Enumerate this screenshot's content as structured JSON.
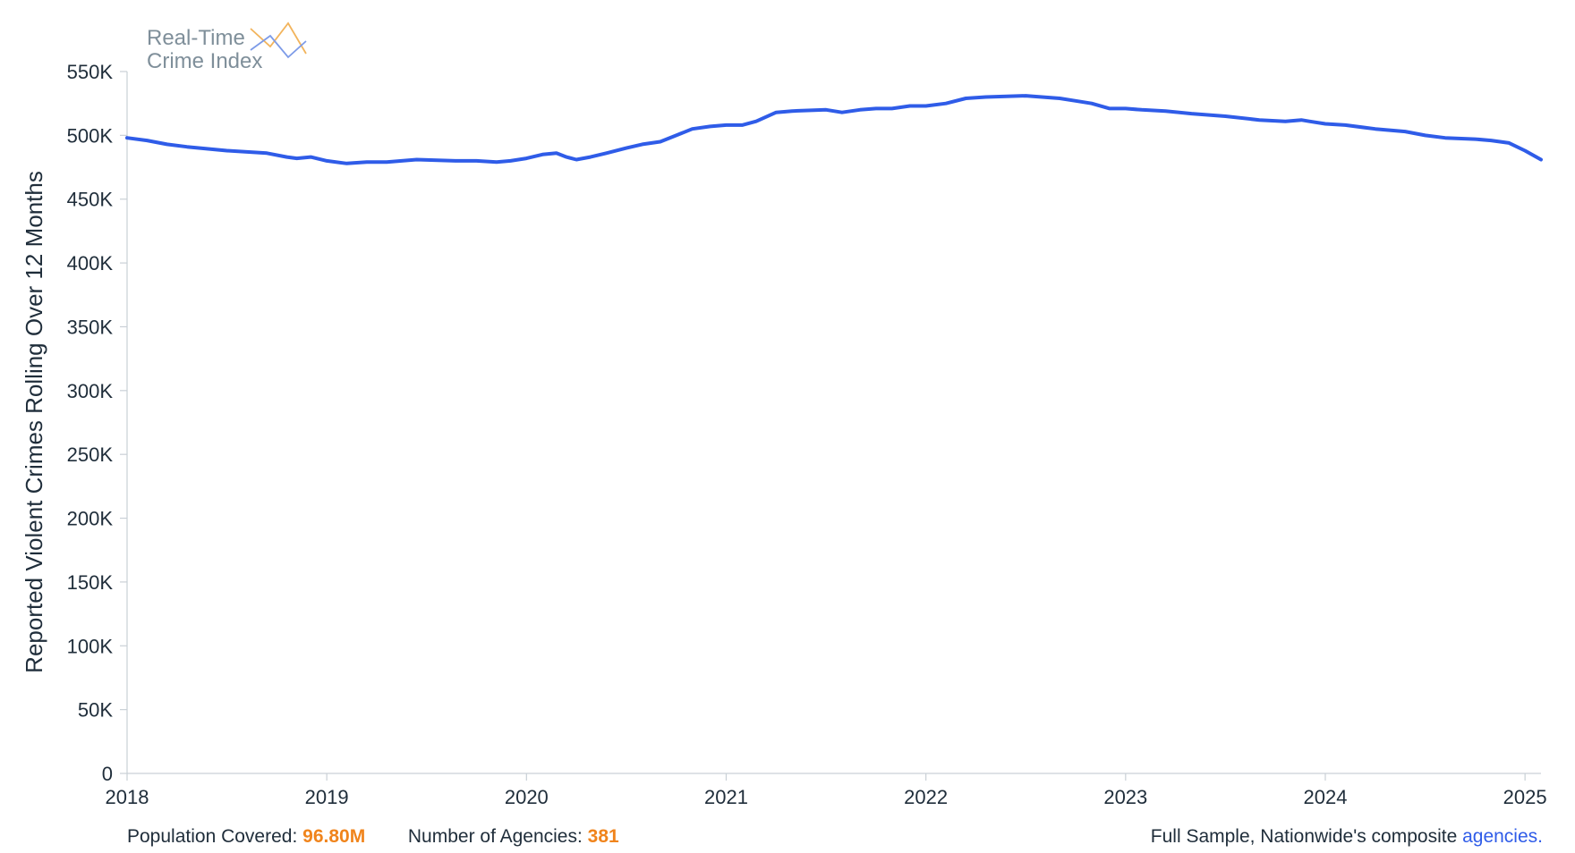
{
  "logo": {
    "line1": "Real-Time",
    "line2": "Crime Index"
  },
  "footer": {
    "population_label": "Population Covered:",
    "population_value": "96.80M",
    "agencies_label": "Number of Agencies:",
    "agencies_value": "381",
    "sample_text": "Full Sample, Nationwide's composite ",
    "agencies_link": "agencies."
  },
  "colors": {
    "line": "#2f5ce8",
    "accent": "#f0841c",
    "logo_orange": "#f2b45c",
    "logo_blue": "#7d9be8"
  },
  "chart_data": {
    "type": "line",
    "title": "",
    "xlabel": "",
    "ylabel": "Reported Violent Crimes Rolling Over 12 Months",
    "xlim": [
      2018.0,
      2025.08
    ],
    "ylim": [
      0,
      550000
    ],
    "x_ticks": [
      2018,
      2019,
      2020,
      2021,
      2022,
      2023,
      2024,
      2025
    ],
    "x_tick_labels": [
      "2018",
      "2019",
      "2020",
      "2021",
      "2022",
      "2023",
      "2024",
      "2025"
    ],
    "y_ticks": [
      0,
      50000,
      100000,
      150000,
      200000,
      250000,
      300000,
      350000,
      400000,
      450000,
      500000,
      550000
    ],
    "y_tick_labels": [
      "0",
      "50K",
      "100K",
      "150K",
      "200K",
      "250K",
      "300K",
      "350K",
      "400K",
      "450K",
      "500K",
      "550K"
    ],
    "grid": false,
    "series": [
      {
        "x": [
          2018.0,
          2018.1,
          2018.2,
          2018.3,
          2018.5,
          2018.7,
          2018.8,
          2018.85,
          2018.92,
          2019.0,
          2019.1,
          2019.2,
          2019.3,
          2019.45,
          2019.65,
          2019.75,
          2019.85,
          2019.92,
          2020.0,
          2020.08,
          2020.15,
          2020.2,
          2020.25,
          2020.32,
          2020.4,
          2020.5,
          2020.58,
          2020.67,
          2020.75,
          2020.83,
          2020.92,
          2021.0,
          2021.08,
          2021.15,
          2021.25,
          2021.33,
          2021.5,
          2021.58,
          2021.67,
          2021.75,
          2021.83,
          2021.92,
          2022.0,
          2022.1,
          2022.2,
          2022.3,
          2022.5,
          2022.67,
          2022.75,
          2022.83,
          2022.92,
          2023.0,
          2023.08,
          2023.2,
          2023.33,
          2023.5,
          2023.67,
          2023.8,
          2023.88,
          2023.92,
          2024.0,
          2024.1,
          2024.25,
          2024.4,
          2024.5,
          2024.6,
          2024.75,
          2024.83,
          2024.92,
          2025.0,
          2025.08
        ],
        "values": [
          498000,
          496000,
          493000,
          491000,
          488000,
          486000,
          483000,
          482000,
          483000,
          480000,
          478000,
          479000,
          479000,
          481000,
          480000,
          480000,
          479000,
          480000,
          482000,
          485000,
          486000,
          483000,
          481000,
          483000,
          486000,
          490000,
          493000,
          495000,
          500000,
          505000,
          507000,
          508000,
          508000,
          511000,
          518000,
          519000,
          520000,
          518000,
          520000,
          521000,
          521000,
          523000,
          523000,
          525000,
          529000,
          530000,
          531000,
          529000,
          527000,
          525000,
          521000,
          521000,
          520000,
          519000,
          517000,
          515000,
          512000,
          511000,
          512000,
          511000,
          509000,
          508000,
          505000,
          503000,
          500000,
          498000,
          497000,
          496000,
          494000,
          488000,
          481000
        ]
      }
    ]
  }
}
